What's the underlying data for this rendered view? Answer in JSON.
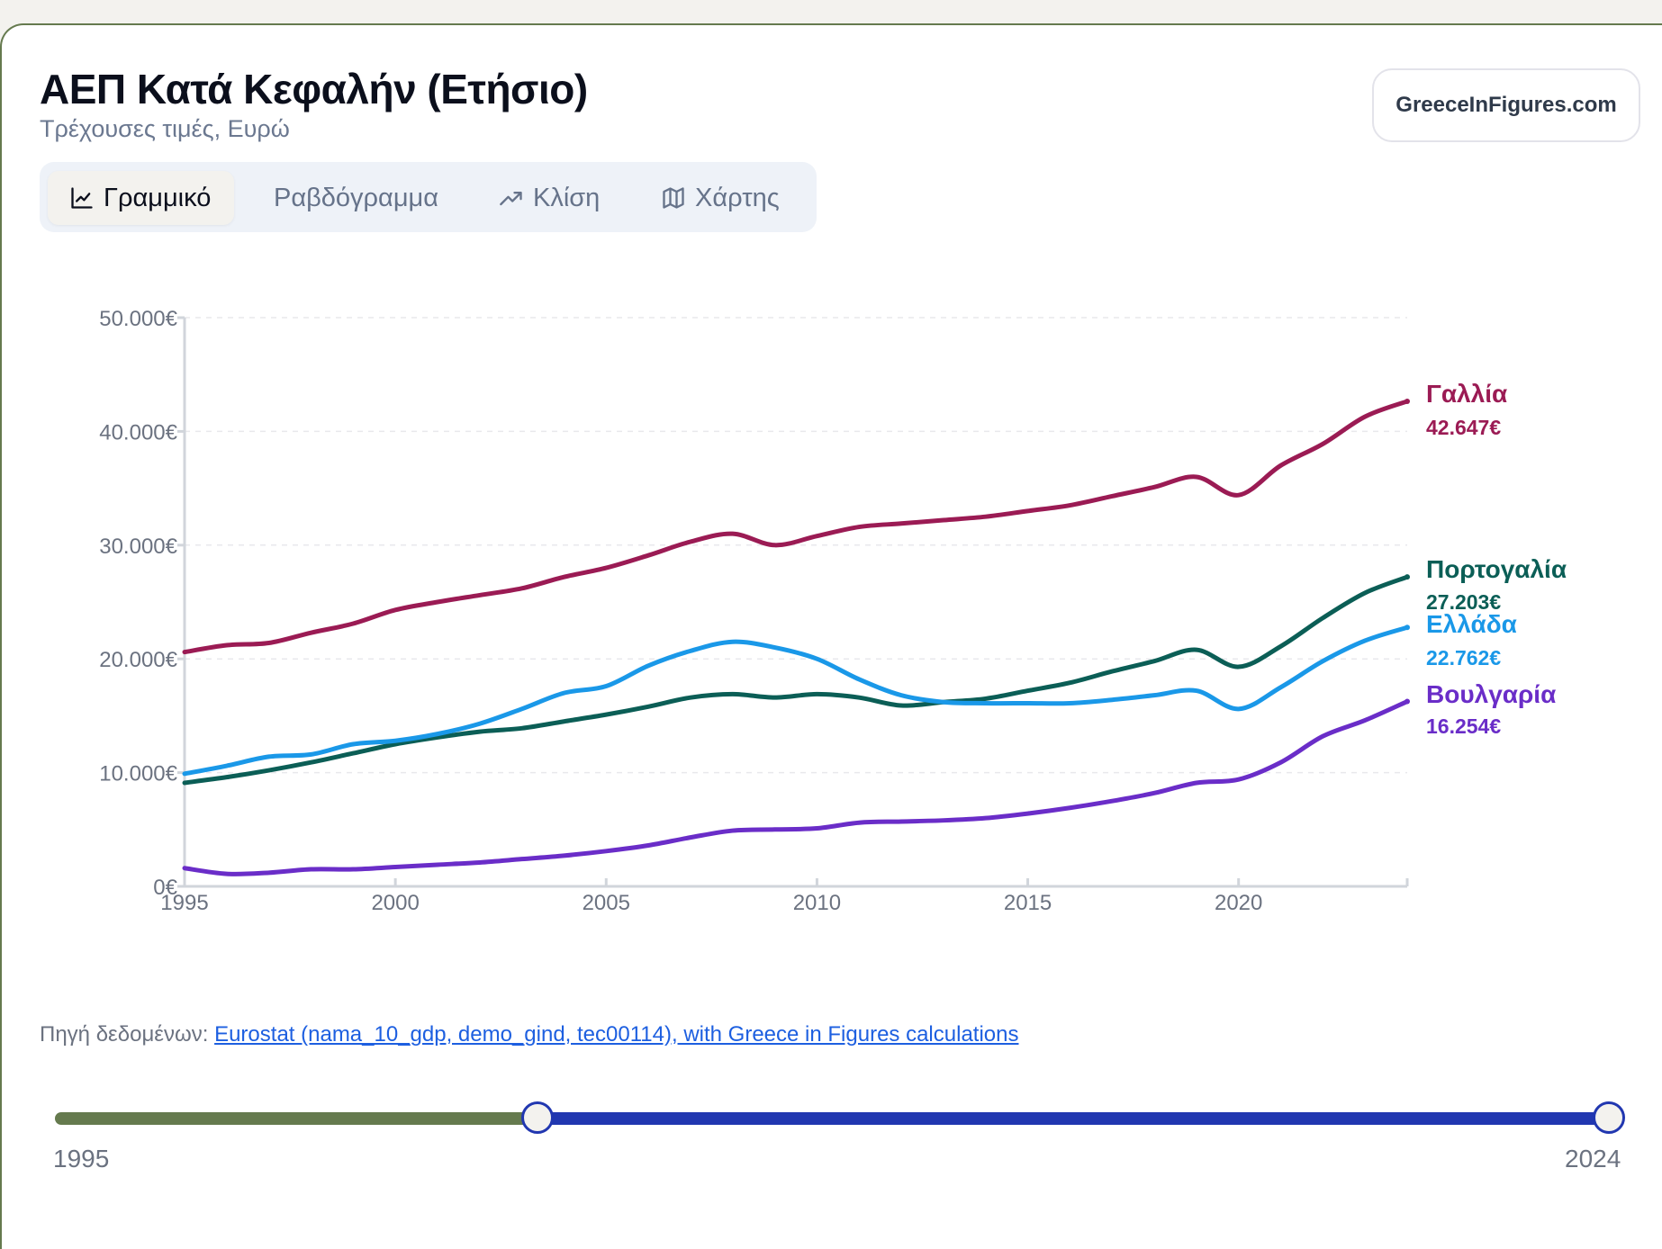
{
  "header": {
    "title": "ΑΕΠ Κατά Κεφαλήν (Ετήσιο)",
    "subtitle": "Τρέχουσες τιμές, Ευρώ",
    "brand": "GreeceInFigures.com"
  },
  "tabs": [
    {
      "label": "Γραμμικό",
      "icon": "line-chart-icon",
      "active": true
    },
    {
      "label": "Ραβδόγραμμα",
      "icon": "bar-chart-icon",
      "active": false
    },
    {
      "label": "Κλίση",
      "icon": "trend-up-icon",
      "active": false
    },
    {
      "label": "Χάρτης",
      "icon": "map-icon",
      "active": false
    }
  ],
  "chart_data": {
    "type": "line",
    "title": "",
    "xlabel": "",
    "ylabel": "",
    "xlim": [
      1995,
      2024
    ],
    "ylim": [
      0,
      50000
    ],
    "grid": true,
    "x_ticks": [
      "1995",
      "2000",
      "2005",
      "2010",
      "2015",
      "2020"
    ],
    "x_tick_values": [
      1995,
      2000,
      2005,
      2010,
      2015,
      2020
    ],
    "y_ticks": [
      "0€",
      "10.000€",
      "20.000€",
      "30.000€",
      "40.000€",
      "50.000€"
    ],
    "y_tick_values": [
      0,
      10000,
      20000,
      30000,
      40000,
      50000
    ],
    "legend": "end-of-line labels",
    "x": [
      1995,
      1996,
      1997,
      1998,
      1999,
      2000,
      2001,
      2002,
      2003,
      2004,
      2005,
      2006,
      2007,
      2008,
      2009,
      2010,
      2011,
      2012,
      2013,
      2014,
      2015,
      2016,
      2017,
      2018,
      2019,
      2020,
      2021,
      2022,
      2023,
      2024
    ],
    "series": [
      {
        "name": "Γαλλία",
        "end_label": "42.647€",
        "color": "#9b1b54",
        "values": [
          20600,
          21200,
          21400,
          22300,
          23100,
          24300,
          25000,
          25600,
          26200,
          27200,
          28000,
          29100,
          30300,
          31000,
          30000,
          30800,
          31600,
          31900,
          32200,
          32500,
          33000,
          33500,
          34300,
          35100,
          36000,
          34400,
          37000,
          38900,
          41300,
          42647
        ]
      },
      {
        "name": "Πορτογαλία",
        "end_label": "27.203€",
        "color": "#0b5e56",
        "values": [
          9100,
          9600,
          10200,
          10900,
          11700,
          12500,
          13100,
          13600,
          13900,
          14500,
          15100,
          15800,
          16600,
          16900,
          16600,
          16900,
          16600,
          15900,
          16200,
          16500,
          17200,
          17900,
          18900,
          19800,
          20800,
          19300,
          21100,
          23600,
          25800,
          27203
        ]
      },
      {
        "name": "Ελλάδα",
        "end_label": "22.762€",
        "color": "#1a98e8",
        "values": [
          9900,
          10600,
          11400,
          11600,
          12500,
          12800,
          13400,
          14300,
          15600,
          17000,
          17600,
          19400,
          20700,
          21500,
          21000,
          20000,
          18200,
          16800,
          16200,
          16100,
          16100,
          16100,
          16400,
          16800,
          17200,
          15600,
          17500,
          19800,
          21600,
          22762
        ]
      },
      {
        "name": "Βουλγαρία",
        "end_label": "16.254€",
        "color": "#6a2dc8",
        "values": [
          1600,
          1100,
          1200,
          1500,
          1500,
          1700,
          1900,
          2100,
          2400,
          2700,
          3100,
          3600,
          4300,
          4900,
          5000,
          5100,
          5600,
          5700,
          5800,
          6000,
          6400,
          6900,
          7500,
          8200,
          9100,
          9400,
          10900,
          13200,
          14600,
          16254
        ]
      }
    ]
  },
  "source": {
    "prefix": "Πηγή δεδομένων:",
    "link_text": "Eurostat (nama_10_gdp, demo_gind, tec00114), with Greece in Figures calculations"
  },
  "range_slider": {
    "min_label": "1995",
    "max_label": "2024",
    "min": 1995,
    "max": 2024,
    "start_value": 2004,
    "end_value": 2024,
    "inactive_color": "#657a4e",
    "active_color": "#2137b0"
  }
}
